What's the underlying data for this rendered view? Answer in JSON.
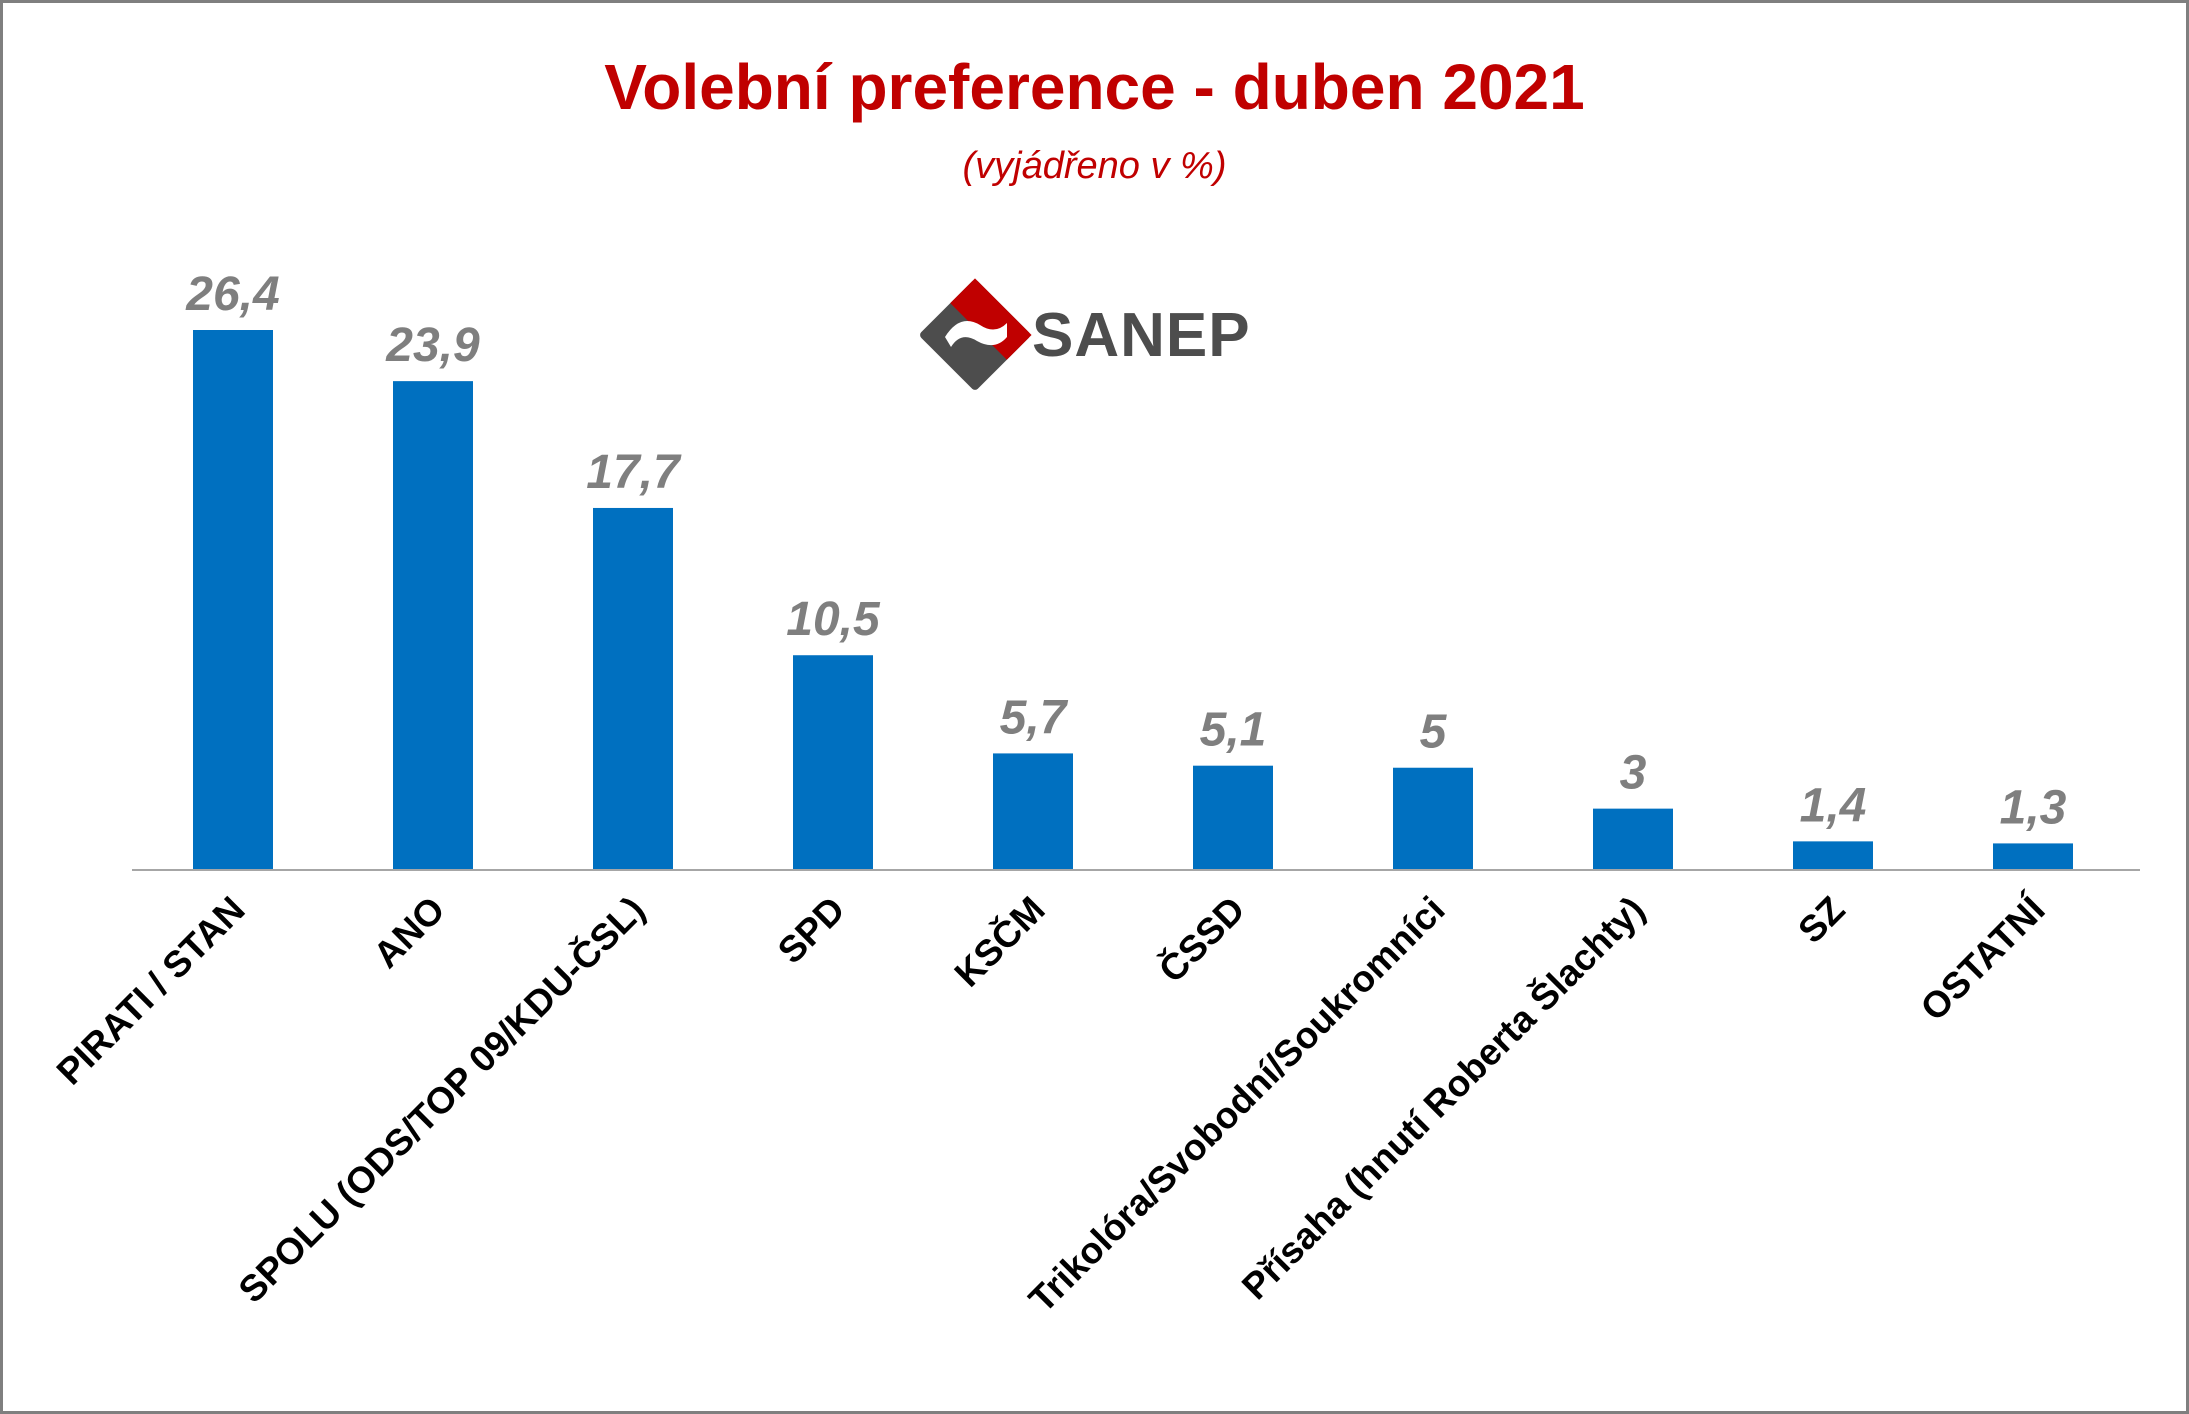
{
  "chart_data": {
    "type": "bar",
    "title": "Volební preference - duben 2021",
    "subtitle": "(vyjádřeno v %)",
    "categories": [
      "PIRATI / STAN",
      "ANO",
      "SPOLU (ODS/TOP 09/KDU-ČSL)",
      "SPD",
      "KSČM",
      "ČSSD",
      "Trikolóra/Svobodní/Soukromníci",
      "Přísaha (hnutí Roberta Šlachty)",
      "SZ",
      "OSTATNÍ"
    ],
    "values": [
      26.4,
      23.9,
      17.7,
      10.5,
      5.7,
      5.1,
      5,
      3,
      1.4,
      1.3
    ],
    "value_labels": [
      "26,4",
      "23,9",
      "17,7",
      "10,5",
      "5,7",
      "5,1",
      "5",
      "3",
      "1,4",
      "1,3"
    ],
    "ylim": [
      0,
      30
    ],
    "grid": false,
    "legend": "none",
    "bar_color": "#0070c0",
    "label_color": "#7f7f7f",
    "title_color": "#c00000"
  },
  "logo": {
    "text": "SANEP",
    "colors": {
      "red": "#c00000",
      "gray": "#4d4d4d"
    }
  }
}
